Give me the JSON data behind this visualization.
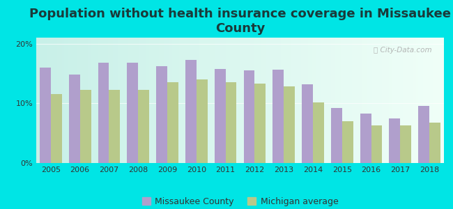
{
  "title": "Population without health insurance coverage in Missaukee\nCounty",
  "years": [
    2005,
    2006,
    2007,
    2008,
    2009,
    2010,
    2011,
    2012,
    2013,
    2014,
    2015,
    2016,
    2017,
    2018
  ],
  "missaukee": [
    16.0,
    14.8,
    16.8,
    16.8,
    16.2,
    17.3,
    15.8,
    15.5,
    15.6,
    13.2,
    9.2,
    8.3,
    7.5,
    9.6
  ],
  "michigan": [
    11.5,
    12.2,
    12.2,
    12.3,
    13.5,
    14.0,
    13.5,
    13.3,
    12.8,
    10.2,
    7.0,
    6.3,
    6.3,
    6.8
  ],
  "missaukee_color": "#b09fcc",
  "michigan_color": "#b8c98a",
  "background_color": "#00e5e5",
  "plot_bg_left": "#c8f0e8",
  "plot_bg_right": "#f0fff8",
  "ylim": [
    0,
    21
  ],
  "yticks": [
    0,
    10,
    20
  ],
  "ytick_labels": [
    "0%",
    "10%",
    "20%"
  ],
  "legend_missaukee": "Missaukee County",
  "legend_michigan": "Michigan average",
  "bar_width": 0.38,
  "title_fontsize": 13,
  "tick_fontsize": 8,
  "legend_fontsize": 9,
  "title_color": "#1a3a3a"
}
